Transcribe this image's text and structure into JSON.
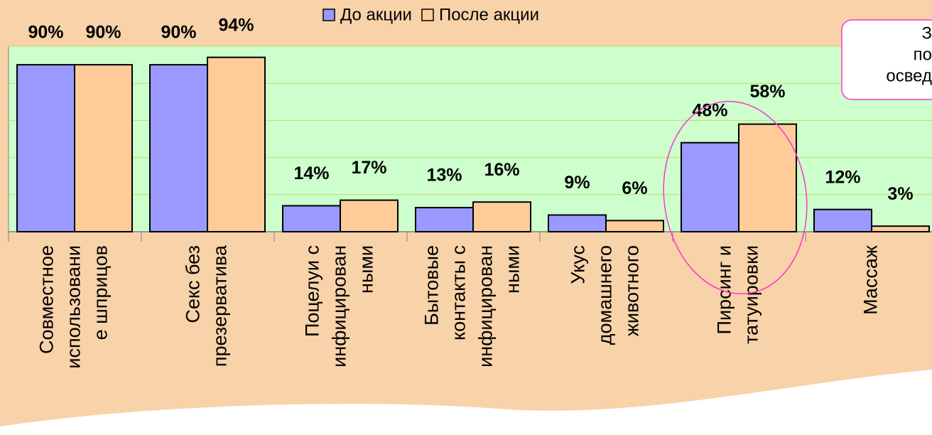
{
  "chart_data": {
    "type": "bar",
    "legend": "top",
    "categories": [
      [
        "Совместное",
        "использовани",
        "е шприцов"
      ],
      [
        "Секс без",
        "презерватива"
      ],
      [
        "Поцелуи с",
        "инфицирован",
        "ными"
      ],
      [
        "Бытовые",
        "контакты с",
        "инфицирован",
        "ными"
      ],
      [
        "Укус",
        "домашнего",
        "животного"
      ],
      [
        "Пирсинг и",
        "татуировки"
      ],
      [
        "Массаж"
      ]
    ],
    "series": [
      {
        "name": "До акции",
        "color": "#9999ff",
        "values": [
          90,
          90,
          14,
          13,
          9,
          48,
          12
        ],
        "value_labels": [
          "90%",
          "90%",
          "14%",
          "13%",
          "9%",
          "48%",
          "12%"
        ]
      },
      {
        "name": "После акции",
        "color": "#ffcc99",
        "values": [
          90,
          94,
          17,
          16,
          6,
          58,
          3
        ],
        "value_labels": [
          "90%",
          "94%",
          "17%",
          "16%",
          "6%",
          "58%",
          "3%"
        ]
      }
    ],
    "ylim": [
      0,
      100
    ],
    "yticks": [
      0,
      20,
      40,
      60,
      80,
      100
    ],
    "grid": true,
    "annotation": [
      "З",
      "по",
      "освед"
    ]
  }
}
